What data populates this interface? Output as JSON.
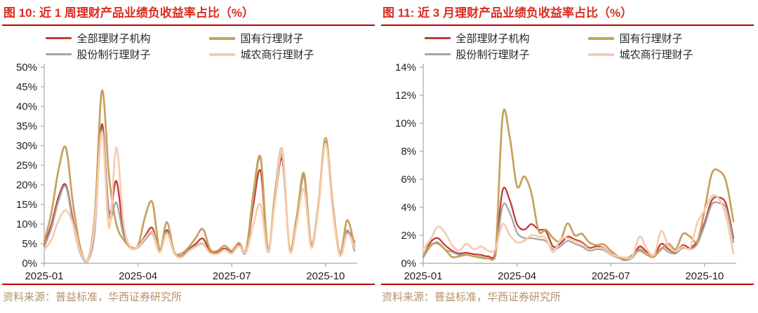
{
  "source_note": "资料来源：普益标准，华西证券研究所",
  "colors": {
    "title_red": "#D92C1F",
    "rule_red": "#C00000",
    "source_text": "#B29167",
    "axis": "#A6A6A6",
    "tick_label": "#1F1F1F",
    "series_red": "#C13A35",
    "series_gold": "#C7A15C",
    "series_gray": "#A6A6A6",
    "series_pink": "#F8CBAD"
  },
  "chart_data": [
    {
      "type": "line",
      "title": "图 10:  近 1 周理财产品业绩负收益率占比（%）",
      "xlabel": "",
      "ylabel": "",
      "x_range": "2025-01 to late 2025-10, weekly points",
      "x_tick_labels": [
        "2025-01",
        "2025-04",
        "2025-07",
        "2025-10"
      ],
      "x_tick_indices": [
        0,
        13,
        26,
        39
      ],
      "ylim": [
        0,
        50
      ],
      "y_tick_step": 5,
      "y_tick_suffix": "%",
      "grid": false,
      "legend_position": "top",
      "series": [
        {
          "name": "全部理财子机构",
          "color": "#C13A35",
          "values": [
            4.5,
            10,
            17,
            20,
            11,
            3,
            0.6,
            9,
            35.5,
            13,
            21,
            8,
            4,
            4.3,
            7,
            9,
            3,
            8.5,
            2.8,
            1.8,
            3.5,
            5,
            6.3,
            3,
            2.8,
            3.8,
            2.8,
            4.8,
            3.2,
            15,
            23.5,
            3.2,
            16,
            26.5,
            3.8,
            11,
            22.5,
            4.5,
            14,
            31,
            14,
            2.2,
            8,
            5.5
          ]
        },
        {
          "name": "国有行理财子",
          "color": "#C7A15C",
          "values": [
            5.5,
            13,
            24,
            29.5,
            15,
            4,
            0.8,
            12,
            44,
            22,
            10,
            6,
            4.2,
            4.5,
            12,
            15.5,
            3.5,
            10.5,
            3,
            2.5,
            4,
            6.5,
            8.7,
            3.5,
            3.2,
            4.5,
            3.2,
            5.2,
            3.5,
            18,
            27,
            3.5,
            18,
            29,
            4,
            12,
            23,
            5,
            15,
            32,
            15,
            2.5,
            11,
            4.5
          ]
        },
        {
          "name": "股份制行理财子",
          "color": "#A6A6A6",
          "values": [
            4.2,
            9,
            16,
            19.5,
            10,
            2.5,
            0.5,
            8,
            34,
            12,
            15.5,
            7,
            3.8,
            4,
            6,
            7.5,
            2.8,
            8,
            2.6,
            1.6,
            3.2,
            4.5,
            5,
            2.7,
            2.5,
            3.5,
            2.6,
            4.5,
            3,
            17,
            26.5,
            3,
            16.5,
            27.5,
            3.5,
            10.5,
            22,
            4.2,
            14.5,
            31,
            14,
            2,
            8.5,
            3.2
          ]
        },
        {
          "name": "城农商行理财子",
          "color": "#F8CBAD",
          "values": [
            3.5,
            6,
            11,
            13.5,
            10,
            3,
            0.7,
            10,
            33.5,
            9,
            29.5,
            10,
            4,
            4.2,
            6.5,
            8,
            2.8,
            7.5,
            2.6,
            1.5,
            3,
            4.2,
            4.8,
            2.6,
            2.4,
            3.4,
            2.5,
            4.4,
            2.9,
            10,
            15,
            2.9,
            16,
            29,
            3.4,
            10,
            19,
            4,
            14,
            30.5,
            13.5,
            1.9,
            7.5,
            4.2
          ]
        }
      ]
    },
    {
      "type": "line",
      "title": "图 11:  近 3 月理财产品业绩负收益率占比（%）",
      "xlabel": "",
      "ylabel": "",
      "x_range": "2025-01 to late 2025-10, weekly points",
      "x_tick_labels": [
        "2025-01",
        "2025-04",
        "2025-07",
        "2025-10"
      ],
      "x_tick_indices": [
        0,
        13,
        26,
        39
      ],
      "ylim": [
        0,
        14
      ],
      "y_tick_step": 2,
      "y_tick_suffix": "%",
      "grid": false,
      "legend_position": "top",
      "series": [
        {
          "name": "全部理财子机构",
          "color": "#C13A35",
          "values": [
            0.5,
            1.5,
            1.8,
            1.3,
            0.9,
            0.7,
            0.75,
            0.65,
            0.6,
            0.5,
            0.8,
            5.2,
            4.5,
            2.8,
            2.4,
            2.8,
            2.4,
            2.3,
            1.2,
            1.4,
            1.9,
            1.7,
            1.5,
            1.1,
            1.2,
            1.1,
            0.7,
            0.5,
            0.4,
            0.5,
            1.2,
            0.8,
            0.6,
            1.4,
            1.0,
            0.8,
            1.3,
            1.1,
            1.6,
            2.9,
            4.5,
            4.7,
            4.2,
            1.8
          ]
        },
        {
          "name": "国有行理财子",
          "color": "#C7A15C",
          "values": [
            0.5,
            1.3,
            1.4,
            1.0,
            0.45,
            0.5,
            0.6,
            0.5,
            0.4,
            0.35,
            0.5,
            10.5,
            9.0,
            5.5,
            6.2,
            5.0,
            2.3,
            2.4,
            1.8,
            1.6,
            2.85,
            2.0,
            2.1,
            1.5,
            1.3,
            1.35,
            0.9,
            0.5,
            0.3,
            0.6,
            0.9,
            0.6,
            0.5,
            1.0,
            1.4,
            1.0,
            2.1,
            1.9,
            1.6,
            3.8,
            6.4,
            6.6,
            5.8,
            3.0
          ]
        },
        {
          "name": "股份制行理财子",
          "color": "#A6A6A6",
          "values": [
            0.4,
            1.2,
            1.5,
            1.0,
            0.8,
            0.6,
            0.6,
            0.5,
            0.45,
            0.35,
            0.6,
            4.1,
            3.6,
            2.2,
            1.8,
            1.8,
            1.7,
            1.6,
            1.0,
            1.2,
            1.6,
            1.4,
            1.2,
            0.9,
            1.0,
            0.95,
            0.6,
            0.4,
            0.2,
            0.4,
            1.0,
            0.6,
            0.45,
            1.1,
            0.8,
            0.7,
            1.1,
            1.0,
            1.4,
            2.7,
            4.2,
            4.3,
            3.9,
            1.5
          ]
        },
        {
          "name": "城农商行理财子",
          "color": "#F8CBAD",
          "values": [
            1.0,
            1.7,
            2.6,
            2.2,
            1.3,
            0.9,
            1.4,
            1.0,
            1.2,
            0.9,
            1.0,
            2.8,
            2.0,
            1.5,
            1.6,
            2.0,
            1.9,
            1.8,
            0.8,
            1.7,
            1.8,
            1.6,
            1.4,
            1.0,
            1.1,
            1.05,
            0.65,
            0.5,
            0.4,
            0.5,
            1.9,
            1.0,
            0.6,
            2.3,
            1.2,
            0.85,
            1.2,
            1.1,
            2.9,
            3.8,
            4.8,
            4.6,
            3.3,
            0.7
          ]
        }
      ]
    }
  ]
}
